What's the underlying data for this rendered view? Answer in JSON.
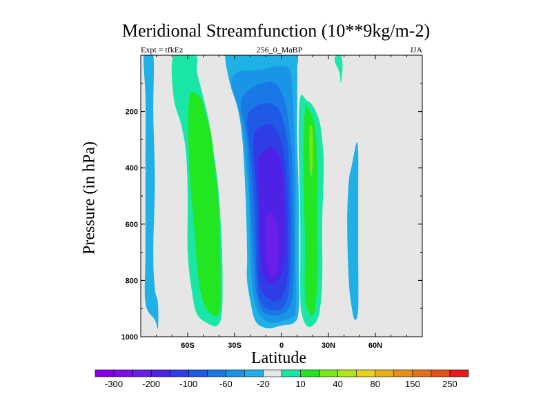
{
  "chart_data": {
    "type": "heatmap",
    "title": "Meridional Streamfunction (10**9kg/m-2)",
    "subtitle_left": "Expt = tfkEz",
    "subtitle_center": "256_0_MaBP",
    "subtitle_right": "JJA",
    "xlabel": "Latitude",
    "ylabel": "Pressure (in hPa)",
    "xlim": [
      -90,
      90
    ],
    "ylim": [
      1000,
      0
    ],
    "x_ticks": [
      {
        "value": -60,
        "label": "60S"
      },
      {
        "value": -30,
        "label": "30S"
      },
      {
        "value": 0,
        "label": "0"
      },
      {
        "value": 30,
        "label": "30N"
      },
      {
        "value": 60,
        "label": "60N"
      }
    ],
    "y_ticks": [
      {
        "value": 200,
        "label": "200"
      },
      {
        "value": 400,
        "label": "400"
      },
      {
        "value": 600,
        "label": "600"
      },
      {
        "value": 800,
        "label": "800"
      },
      {
        "value": 1000,
        "label": "1000"
      }
    ],
    "background_color": "#e6e6e6",
    "contour_levels": [
      -300,
      -250,
      -200,
      -150,
      -100,
      -80,
      -60,
      -40,
      -20,
      -10,
      10,
      20,
      40,
      60,
      80,
      100,
      150,
      200,
      250,
      300
    ],
    "level_colors": [
      "#8a00e6",
      "#7a10e6",
      "#6a1fe6",
      "#4d22e6",
      "#2e3de6",
      "#1f5ae6",
      "#1a78e6",
      "#1a95e6",
      "#1fb0e6",
      "#e6e6e6",
      "#1ae6a8",
      "#22e622",
      "#7ae61a",
      "#b0e61a",
      "#e6d21a",
      "#e6b01a",
      "#e6901a",
      "#e6701a",
      "#e64f1a",
      "#e61a1a"
    ],
    "colorbar_labels": [
      {
        "value": -300,
        "label": "-300"
      },
      {
        "value": -200,
        "label": "-200"
      },
      {
        "value": -100,
        "label": "-100"
      },
      {
        "value": -60,
        "label": "-60"
      },
      {
        "value": -20,
        "label": "-20"
      },
      {
        "value": 10,
        "label": "10"
      },
      {
        "value": 40,
        "label": "40"
      },
      {
        "value": 80,
        "label": "80"
      },
      {
        "value": 150,
        "label": "150"
      },
      {
        "value": 250,
        "label": "250"
      }
    ],
    "regions": [
      {
        "color": "#1fb0e6",
        "points": [
          [
            -9,
            0
          ],
          [
            -9,
            10
          ],
          [
            -13,
            12
          ],
          [
            -12,
            20
          ],
          [
            -20,
            12
          ],
          [
            -24,
            22
          ],
          [
            -30,
            10
          ],
          [
            -36,
            0
          ]
        ]
      },
      {
        "color": "#1fb0e6",
        "points": [
          [
            -82,
            0
          ],
          [
            -82,
            200
          ],
          [
            -81,
            450
          ],
          [
            -82,
            700
          ],
          [
            -81,
            830
          ],
          [
            -79,
            880
          ],
          [
            -79,
            970
          ],
          [
            -81,
            940
          ],
          [
            -87,
            880
          ],
          [
            -87,
            700
          ],
          [
            -87,
            400
          ],
          [
            -87,
            150
          ],
          [
            -88,
            0
          ]
        ]
      },
      {
        "color": "#1ae6a8",
        "points": [
          [
            -69,
            0
          ],
          [
            -69,
            150
          ],
          [
            -64,
            250
          ],
          [
            -61,
            350
          ],
          [
            -60,
            500
          ],
          [
            -60,
            700
          ],
          [
            -57,
            850
          ],
          [
            -54,
            920
          ],
          [
            -48,
            950
          ],
          [
            -41,
            960
          ],
          [
            -38,
            900
          ],
          [
            -38,
            700
          ],
          [
            -40,
            500
          ],
          [
            -42,
            400
          ],
          [
            -46,
            250
          ],
          [
            -50,
            150
          ],
          [
            -54,
            60
          ],
          [
            -55,
            0
          ]
        ]
      },
      {
        "color": "#22e622",
        "points": [
          [
            -59,
            150
          ],
          [
            -59,
            400
          ],
          [
            -56,
            600
          ],
          [
            -53,
            800
          ],
          [
            -48,
            900
          ],
          [
            -40,
            920
          ],
          [
            -39,
            800
          ],
          [
            -40,
            550
          ],
          [
            -43,
            380
          ],
          [
            -45,
            280
          ],
          [
            -49,
            200
          ],
          [
            -52,
            150
          ]
        ]
      },
      {
        "color": "#1fb0e6",
        "points": [
          [
            -36,
            0
          ],
          [
            -33,
            100
          ],
          [
            -28,
            190
          ],
          [
            -25,
            300
          ],
          [
            -23,
            500
          ],
          [
            -22,
            700
          ],
          [
            -22,
            800
          ],
          [
            -19,
            900
          ],
          [
            -17,
            940
          ],
          [
            -14,
            960
          ],
          [
            -8,
            970
          ],
          [
            0,
            960
          ],
          [
            8,
            950
          ],
          [
            11,
            900
          ],
          [
            11,
            700
          ],
          [
            11,
            500
          ],
          [
            10,
            300
          ],
          [
            10,
            150
          ],
          [
            10,
            50
          ],
          [
            9,
            0
          ],
          [
            -9,
            0
          ],
          [
            -9,
            10
          ],
          [
            -13,
            12
          ],
          [
            -12,
            20
          ],
          [
            -20,
            12
          ],
          [
            -24,
            22
          ],
          [
            -30,
            10
          ]
        ]
      },
      {
        "color": "#1a95e6",
        "points": [
          [
            -32,
            100
          ],
          [
            -27,
            200
          ],
          [
            -24,
            300
          ],
          [
            -21,
            500
          ],
          [
            -20,
            700
          ],
          [
            -19,
            800
          ],
          [
            -17,
            880
          ],
          [
            -13,
            930
          ],
          [
            -7,
            950
          ],
          [
            0,
            945
          ],
          [
            7,
            930
          ],
          [
            9,
            900
          ],
          [
            9,
            700
          ],
          [
            9,
            450
          ],
          [
            8,
            260
          ],
          [
            7,
            130
          ],
          [
            5,
            50
          ],
          [
            -3,
            40
          ],
          [
            -12,
            50
          ],
          [
            -20,
            55
          ],
          [
            -28,
            60
          ]
        ]
      },
      {
        "color": "#1a78e6",
        "points": [
          [
            -26,
            170
          ],
          [
            -22,
            300
          ],
          [
            -20,
            500
          ],
          [
            -18,
            720
          ],
          [
            -16,
            850
          ],
          [
            -12,
            910
          ],
          [
            -5,
            925
          ],
          [
            3,
            910
          ],
          [
            7,
            850
          ],
          [
            8,
            650
          ],
          [
            7,
            400
          ],
          [
            5,
            260
          ],
          [
            2,
            160
          ],
          [
            -4,
            100
          ],
          [
            -12,
            100
          ],
          [
            -20,
            120
          ]
        ]
      },
      {
        "color": "#1f5ae6",
        "points": [
          [
            -22,
            230
          ],
          [
            -19,
            400
          ],
          [
            -17,
            600
          ],
          [
            -16,
            780
          ],
          [
            -14,
            870
          ],
          [
            -7,
            905
          ],
          [
            1,
            895
          ],
          [
            5,
            820
          ],
          [
            6,
            620
          ],
          [
            5,
            420
          ],
          [
            3,
            280
          ],
          [
            -2,
            190
          ],
          [
            -10,
            170
          ],
          [
            -17,
            185
          ]
        ]
      },
      {
        "color": "#2e3de6",
        "points": [
          [
            -18,
            300
          ],
          [
            -16,
            500
          ],
          [
            -15,
            700
          ],
          [
            -14,
            820
          ],
          [
            -7,
            870
          ],
          [
            0,
            860
          ],
          [
            4,
            780
          ],
          [
            4,
            580
          ],
          [
            3,
            420
          ],
          [
            0,
            310
          ],
          [
            -6,
            250
          ],
          [
            -13,
            255
          ]
        ]
      },
      {
        "color": "#4d22e6",
        "points": [
          [
            -15,
            380
          ],
          [
            -14,
            560
          ],
          [
            -13,
            740
          ],
          [
            -9,
            810
          ],
          [
            -2,
            800
          ],
          [
            2,
            720
          ],
          [
            2,
            530
          ],
          [
            0,
            390
          ],
          [
            -5,
            330
          ],
          [
            -11,
            340
          ]
        ]
      },
      {
        "color": "#6a1fe6",
        "points": [
          [
            -10,
            580
          ],
          [
            -10,
            700
          ],
          [
            -8,
            770
          ],
          [
            -4,
            780
          ],
          [
            -2,
            730
          ],
          [
            -2,
            630
          ],
          [
            -4,
            580
          ],
          [
            -7,
            560
          ]
        ]
      },
      {
        "color": "#1ae6a8",
        "points": [
          [
            12,
            150
          ],
          [
            11,
            300
          ],
          [
            12,
            600
          ],
          [
            12,
            850
          ],
          [
            13,
            920
          ],
          [
            16,
            960
          ],
          [
            20,
            960
          ],
          [
            24,
            920
          ],
          [
            26,
            800
          ],
          [
            26,
            600
          ],
          [
            27,
            400
          ],
          [
            26,
            300
          ],
          [
            24,
            230
          ],
          [
            20,
            180
          ],
          [
            16,
            160
          ]
        ]
      },
      {
        "color": "#22e622",
        "points": [
          [
            15,
            190
          ],
          [
            14,
            400
          ],
          [
            15,
            650
          ],
          [
            15,
            850
          ],
          [
            18,
            920
          ],
          [
            21,
            910
          ],
          [
            23,
            800
          ],
          [
            23,
            600
          ],
          [
            23,
            400
          ],
          [
            22,
            280
          ],
          [
            20,
            220
          ],
          [
            17,
            190
          ]
        ]
      },
      {
        "color": "#7ae61a",
        "points": [
          [
            18,
            260
          ],
          [
            18,
            380
          ],
          [
            19,
            430
          ],
          [
            20,
            380
          ],
          [
            20,
            280
          ],
          [
            19,
            250
          ]
        ]
      },
      {
        "color": "#1fb0e6",
        "points": [
          [
            43,
            450
          ],
          [
            42,
            600
          ],
          [
            43,
            800
          ],
          [
            45,
            900
          ],
          [
            47,
            940
          ],
          [
            49,
            900
          ],
          [
            49,
            700
          ],
          [
            49,
            500
          ],
          [
            49,
            350
          ],
          [
            48,
            310
          ],
          [
            45,
            390
          ]
        ]
      },
      {
        "color": "#1ae6a8",
        "points": [
          [
            35,
            0
          ],
          [
            34,
            20
          ],
          [
            37,
            60
          ],
          [
            38,
            100
          ],
          [
            39,
            40
          ],
          [
            38,
            0
          ]
        ]
      }
    ]
  }
}
